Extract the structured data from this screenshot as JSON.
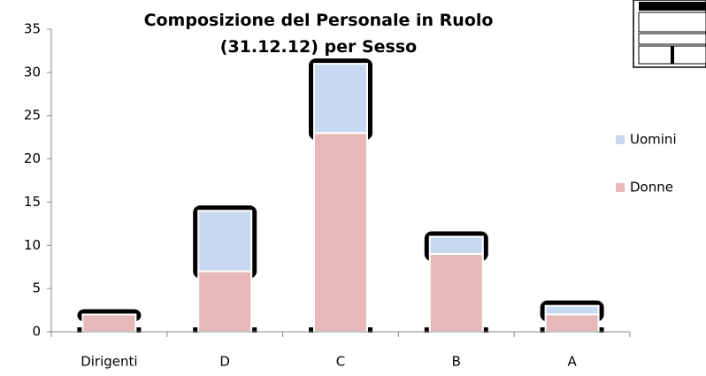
{
  "chart_data": {
    "type": "bar",
    "stacked": true,
    "title": "Composizione del Personale in Ruolo (31.12.12) per Sesso",
    "categories": [
      "Dirigenti",
      "D",
      "C",
      "B",
      "A"
    ],
    "series": [
      {
        "name": "Donne",
        "color": "#e6b9b8",
        "values": [
          2,
          7,
          23,
          9,
          2
        ]
      },
      {
        "name": "Uomini",
        "color": "#c6d9f1",
        "values": [
          0,
          7,
          8,
          2,
          1
        ]
      }
    ],
    "ylim": [
      0,
      35
    ],
    "yticks": [
      0,
      5,
      10,
      15,
      20,
      25,
      30,
      35
    ],
    "legend": "right"
  }
}
